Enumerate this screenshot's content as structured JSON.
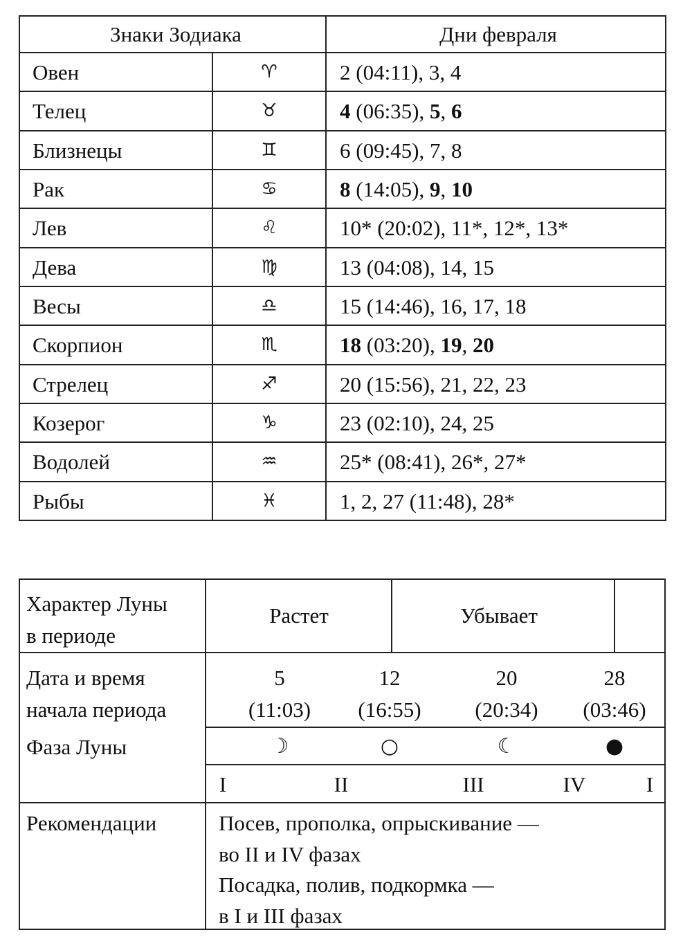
{
  "zodiac_table": {
    "header_sign": "Знаки Зодиака",
    "header_days": "Дни февраля",
    "rows": [
      {
        "name": "Овен",
        "symbol": "♈︎",
        "days": [
          {
            "t": "2 (04:11), 3, 4"
          }
        ]
      },
      {
        "name": "Телец",
        "symbol": "♉︎",
        "days": [
          {
            "t": "4",
            "b": true
          },
          {
            "t": " (06:35), "
          },
          {
            "t": "5",
            "b": true
          },
          {
            "t": ", "
          },
          {
            "t": "6",
            "b": true
          }
        ]
      },
      {
        "name": "Близнецы",
        "symbol": "♊︎",
        "days": [
          {
            "t": "6 (09:45), 7, 8"
          }
        ]
      },
      {
        "name": "Рак",
        "symbol": "♋︎",
        "days": [
          {
            "t": "8",
            "b": true
          },
          {
            "t": " (14:05), "
          },
          {
            "t": "9",
            "b": true
          },
          {
            "t": ", "
          },
          {
            "t": "10",
            "b": true
          }
        ]
      },
      {
        "name": "Лев",
        "symbol": "♌︎",
        "days": [
          {
            "t": "10* (20:02), 11*, 12*, 13*"
          }
        ]
      },
      {
        "name": "Дева",
        "symbol": "♍︎",
        "days": [
          {
            "t": "13 (04:08), 14, 15"
          }
        ]
      },
      {
        "name": "Весы",
        "symbol": "♎︎",
        "days": [
          {
            "t": "15 (14:46), 16, 17, 18"
          }
        ]
      },
      {
        "name": "Скорпион",
        "symbol": "♏︎",
        "days": [
          {
            "t": "18",
            "b": true
          },
          {
            "t": " (03:20), "
          },
          {
            "t": "19",
            "b": true
          },
          {
            "t": ", "
          },
          {
            "t": "20",
            "b": true
          }
        ]
      },
      {
        "name": "Стрелец",
        "symbol": "♐︎",
        "days": [
          {
            "t": "20 (15:56), 21, 22, 23"
          }
        ]
      },
      {
        "name": "Козерог",
        "symbol": "♑︎",
        "days": [
          {
            "t": "23 (02:10), 24, 25"
          }
        ]
      },
      {
        "name": "Водолей",
        "symbol": "♒︎",
        "days": [
          {
            "t": "25* (08:41), 26*, 27*"
          }
        ]
      },
      {
        "name": "Рыбы",
        "symbol": "♓︎",
        "days": [
          {
            "t": "1, 2, 27 (11:48), 28*"
          }
        ]
      }
    ]
  },
  "moon_table": {
    "character_label_1": "Характер Луны",
    "character_label_2": "в периоде",
    "growing": "Растет",
    "waning": "Убывает",
    "date_label_1": "Дата и время",
    "date_label_2": "начала периода",
    "phase_label": "Фаза Луны",
    "periods": [
      {
        "day": "5",
        "time": "(11:03)",
        "phase_icon": "☽"
      },
      {
        "day": "12",
        "time": "(16:55)",
        "phase_icon": "○"
      },
      {
        "day": "20",
        "time": "(20:34)",
        "phase_icon": "☾"
      },
      {
        "day": "28",
        "time": "(03:46)",
        "phase_icon": "●"
      }
    ],
    "phases": [
      "I",
      "II",
      "III",
      "IV",
      "I"
    ],
    "recommendations_label": "Рекомендации",
    "recommendations": [
      "Посев, прополка, опрыскивание —",
      "во II и IV фазах",
      "Посадка, полив, подкормка —",
      "в I и III фазах"
    ]
  }
}
